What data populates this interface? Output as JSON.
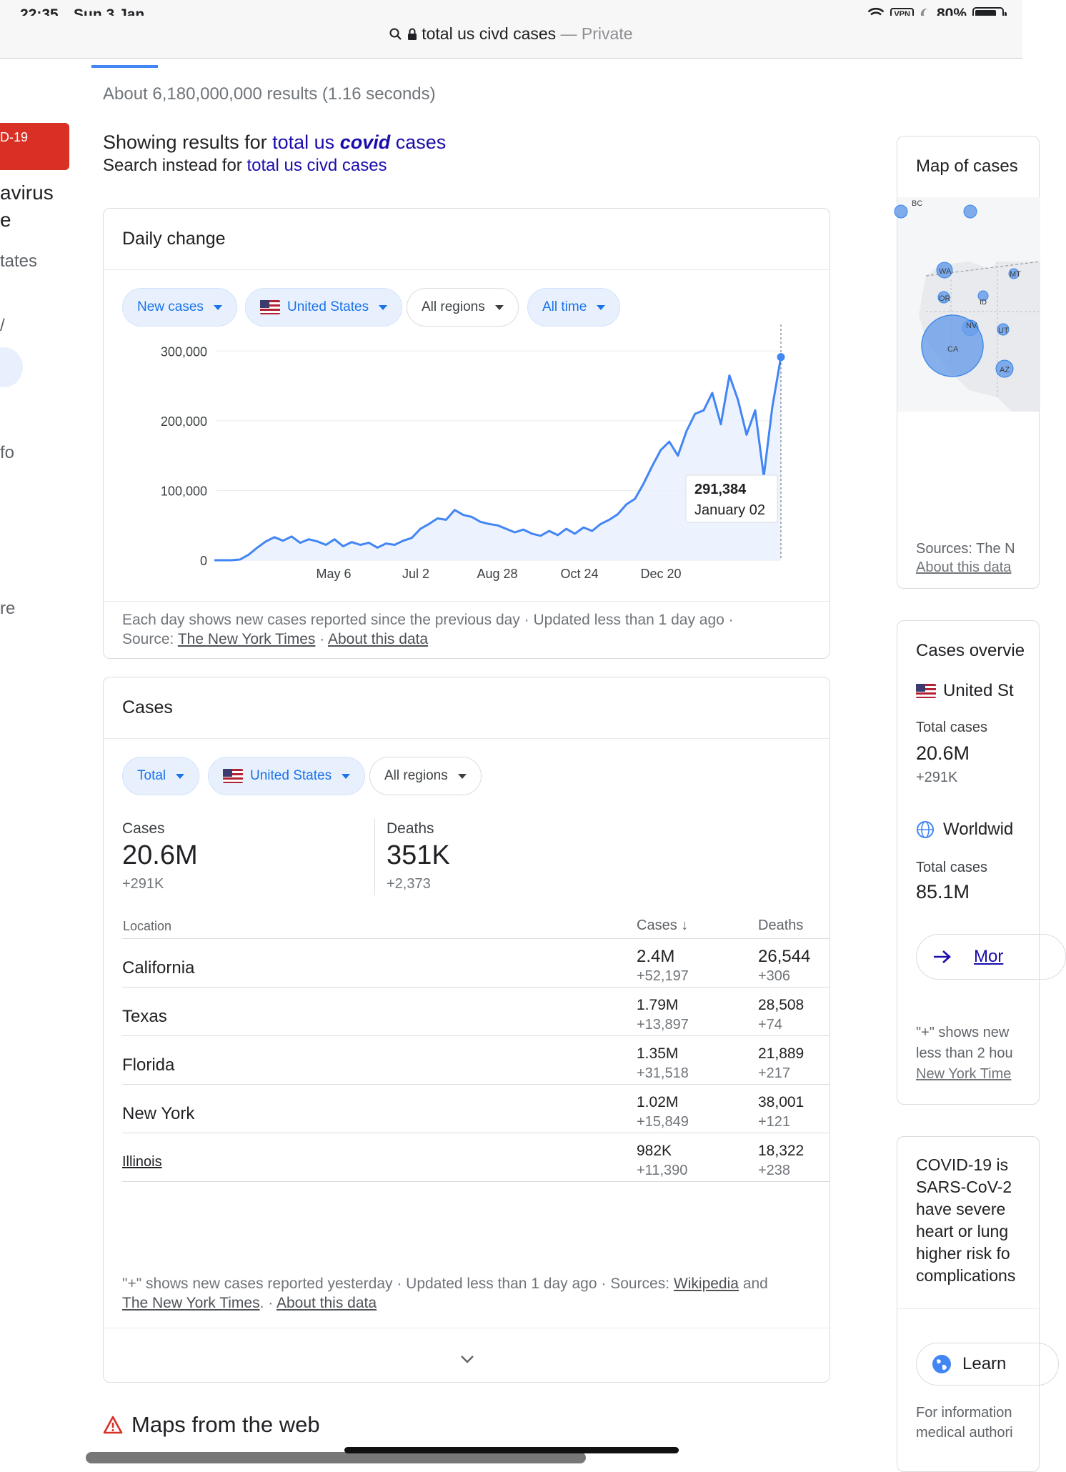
{
  "status": {
    "time": "22:35",
    "date": "Sun 3 Jan",
    "vpn": "VPN",
    "battery": "80%"
  },
  "url": {
    "query": "total us civd cases",
    "suffix": "— Private"
  },
  "results": {
    "count": "About 6,180,000,000 results (1.16 seconds)"
  },
  "spelling": {
    "showing_prefix": "Showing results for",
    "showing_pre": "total us",
    "showing_em": "covid",
    "showing_post": "cases",
    "instead_prefix": "Search instead for",
    "instead_link": "total us civd cases"
  },
  "left": {
    "badge": "D-19",
    "line1": "avirus",
    "line2": "e",
    "line3": "tates",
    "line4": "/",
    "line5": "fo",
    "line6": "re"
  },
  "daily": {
    "title": "Daily change",
    "chips": [
      "New cases",
      "United States",
      "All regions",
      "All time"
    ],
    "tooltip_value": "291,384",
    "tooltip_date": "January 02",
    "footnote_line1": "Each day shows new cases reported since the previous day · Updated less than 1 day ago ·",
    "source_label": "Source:",
    "source_link": "The New York Times",
    "sep": "·",
    "about": "About this data"
  },
  "chart_data": {
    "type": "area",
    "title": "",
    "xlabel": "",
    "ylabel": "",
    "ylim": [
      0,
      330000
    ],
    "yticks": [
      0,
      100000,
      200000,
      300000
    ],
    "ytick_labels": [
      "0",
      "100,000",
      "200,000",
      "300,000"
    ],
    "xtick_labels": [
      "May 6",
      "Jul 2",
      "Aug 28",
      "Oct 24",
      "Dec 20"
    ],
    "x": [
      "Jan 22",
      "Feb 7",
      "Feb 22",
      "Mar 8",
      "Mar 15",
      "Mar 22",
      "Mar 29",
      "Apr 3",
      "Apr 8",
      "Apr 13",
      "Apr 18",
      "Apr 23",
      "Apr 28",
      "May 3",
      "May 8",
      "May 13",
      "May 18",
      "May 23",
      "May 28",
      "Jun 2",
      "Jun 7",
      "Jun 12",
      "Jun 17",
      "Jun 22",
      "Jun 27",
      "Jul 2",
      "Jul 7",
      "Jul 12",
      "Jul 17",
      "Jul 22",
      "Jul 27",
      "Aug 1",
      "Aug 6",
      "Aug 11",
      "Aug 16",
      "Aug 21",
      "Aug 26",
      "Aug 31",
      "Sep 5",
      "Sep 10",
      "Sep 15",
      "Sep 20",
      "Sep 25",
      "Sep 30",
      "Oct 5",
      "Oct 10",
      "Oct 15",
      "Oct 20",
      "Oct 25",
      "Oct 30",
      "Nov 4",
      "Nov 9",
      "Nov 14",
      "Nov 19",
      "Nov 24",
      "Nov 29",
      "Dec 4",
      "Dec 9",
      "Dec 13",
      "Dec 16",
      "Dec 19",
      "Dec 22",
      "Dec 25",
      "Dec 28",
      "Dec 31",
      "Jan 1",
      "Jan 2"
    ],
    "series": [
      {
        "values": [
          0,
          0,
          0,
          1000,
          8000,
          18000,
          27000,
          33000,
          28000,
          34000,
          25000,
          30000,
          27000,
          22000,
          30000,
          20000,
          26000,
          22000,
          25000,
          18000,
          24000,
          22000,
          28000,
          32000,
          45000,
          52000,
          60000,
          58000,
          72000,
          65000,
          62000,
          55000,
          52000,
          50000,
          45000,
          40000,
          44000,
          38000,
          35000,
          42000,
          36000,
          45000,
          38000,
          47000,
          42000,
          52000,
          58000,
          66000,
          80000,
          88000,
          110000,
          135000,
          158000,
          170000,
          150000,
          185000,
          210000,
          215000,
          240000,
          195000,
          265000,
          230000,
          180000,
          215000,
          120000,
          220000,
          291384
        ]
      }
    ]
  },
  "cases": {
    "title": "Cases",
    "chips": [
      "Total",
      "United States",
      "All regions"
    ],
    "cases_label": "Cases",
    "cases_value": "20.6M",
    "cases_delta": "+291K",
    "deaths_label": "Deaths",
    "deaths_value": "351K",
    "deaths_delta": "+2,373",
    "headers": {
      "location": "Location",
      "cases": "Cases",
      "deaths": "Deaths"
    },
    "rows": [
      {
        "location": "California",
        "cases": "2.4M",
        "cases_delta": "+52,197",
        "deaths": "26,544",
        "deaths_delta": "+306"
      },
      {
        "location": "Texas",
        "cases": "1.79M",
        "cases_delta": "+13,897",
        "deaths": "28,508",
        "deaths_delta": "+74"
      },
      {
        "location": "Florida",
        "cases": "1.35M",
        "cases_delta": "+31,518",
        "deaths": "21,889",
        "deaths_delta": "+217"
      },
      {
        "location": "New York",
        "cases": "1.02M",
        "cases_delta": "+15,849",
        "deaths": "38,001",
        "deaths_delta": "+121"
      },
      {
        "location": "Illinois",
        "cases": "982K",
        "cases_delta": "+11,390",
        "deaths": "18,322",
        "deaths_delta": "+238"
      }
    ],
    "foot_text": "\"+\" shows new cases reported yesterday · Updated less than 1 day ago  ·  Sources:",
    "foot_wiki": "Wikipedia",
    "foot_and": "and",
    "foot_nyt": "The New York Times",
    "foot_sep": ". ·",
    "foot_about": "About this data"
  },
  "right": {
    "map_title": "Map of cases",
    "map_labels": [
      "BC",
      "WA",
      "MT",
      "OR",
      "ID",
      "NV",
      "UT",
      "CA",
      "AZ"
    ],
    "map_sources": "Sources: The N",
    "map_about": "About this data",
    "overview_title": "Cases overvie",
    "us_label": "United St",
    "total_cases_label": "Total cases",
    "us_total": "20.6M",
    "us_delta": "+291K",
    "world_label": "Worldwid",
    "world_total_label": "Total cases",
    "world_total": "85.1M",
    "more": "Mor",
    "note1": "\"+\" shows new",
    "note2": "less than 2 hou",
    "note3": "New York Time",
    "info_lines": [
      "COVID-19 is",
      "SARS-CoV-2",
      "have severe",
      "heart or lung",
      "higher risk fo",
      "complications"
    ],
    "learn": "Learn",
    "info_foot1": "For information",
    "info_foot2": "medical authori"
  },
  "maps": {
    "title": "Maps from the web"
  }
}
